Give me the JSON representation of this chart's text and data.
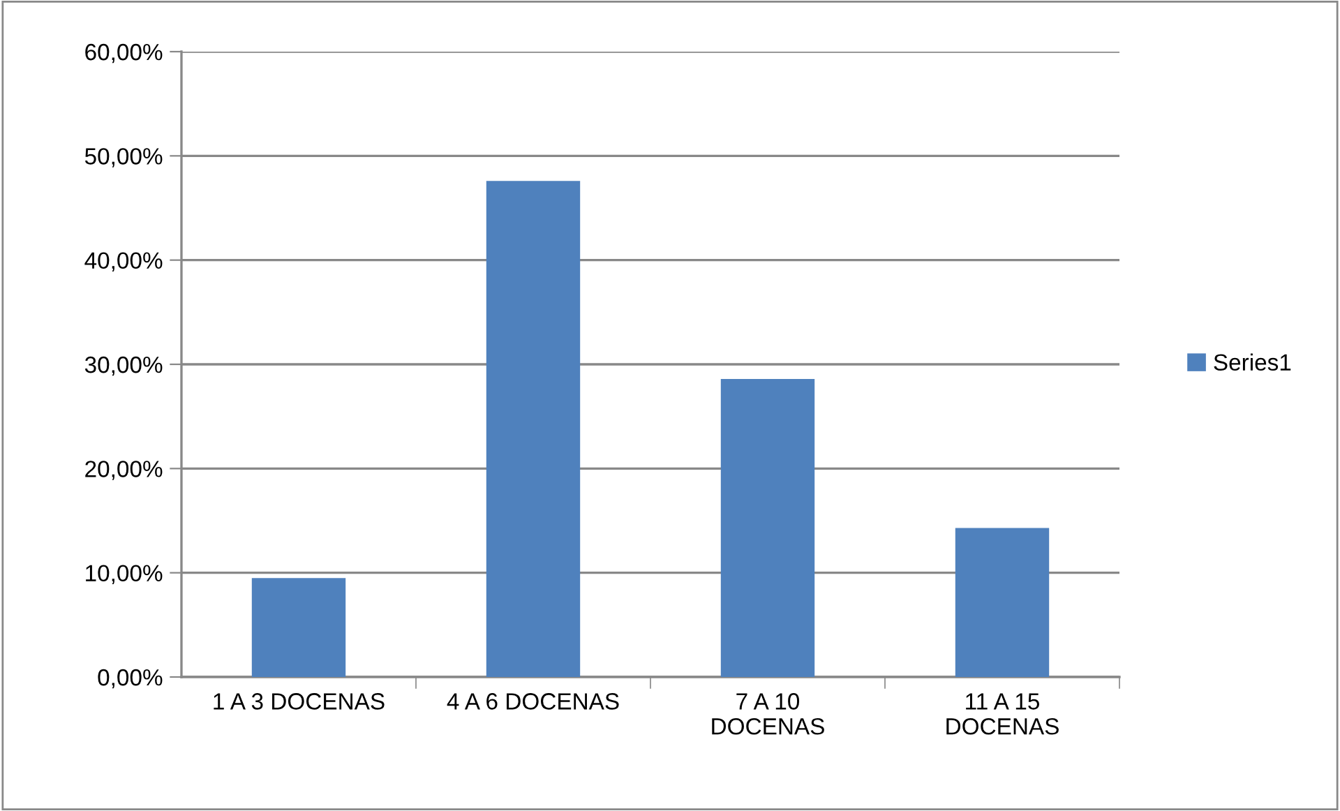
{
  "chart_data": {
    "type": "bar",
    "categories": [
      "1 A 3 DOCENAS",
      "4 A 6 DOCENAS",
      "7 A 10\nDOCENAS",
      "11 A 15\nDOCENAS"
    ],
    "series": [
      {
        "name": "Series1",
        "color": "#4f81bd",
        "values": [
          9.5,
          47.6,
          28.6,
          14.3
        ]
      }
    ],
    "ylim": [
      0,
      60
    ],
    "yticks": [
      {
        "value": 0,
        "label": "0,00%"
      },
      {
        "value": 10,
        "label": "10,00%"
      },
      {
        "value": 20,
        "label": "20,00%"
      },
      {
        "value": 30,
        "label": "30,00%"
      },
      {
        "value": 40,
        "label": "40,00%"
      },
      {
        "value": 50,
        "label": "50,00%"
      },
      {
        "value": 60,
        "label": "60,00%"
      }
    ],
    "grid": "y",
    "legend": "right"
  }
}
